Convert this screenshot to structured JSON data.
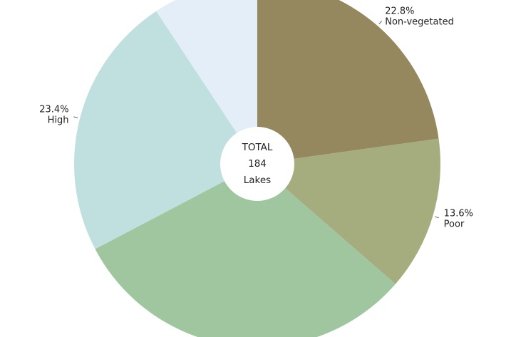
{
  "chart_data": {
    "type": "pie",
    "categories": [
      "Non-vegetated",
      "Poor",
      null,
      "High",
      null
    ],
    "values": [
      22.8,
      13.6,
      30.9,
      23.4,
      9.3
    ],
    "value_labels": [
      "22.8%",
      "13.6%",
      null,
      "23.4%",
      null
    ],
    "colors": [
      "#95885f",
      "#a5ad7f",
      "#9fc69e",
      "#c0dfdf",
      "#e3eef8"
    ],
    "center_text": {
      "title": "TOTAL",
      "total": 184,
      "unit": "Lakes"
    }
  }
}
